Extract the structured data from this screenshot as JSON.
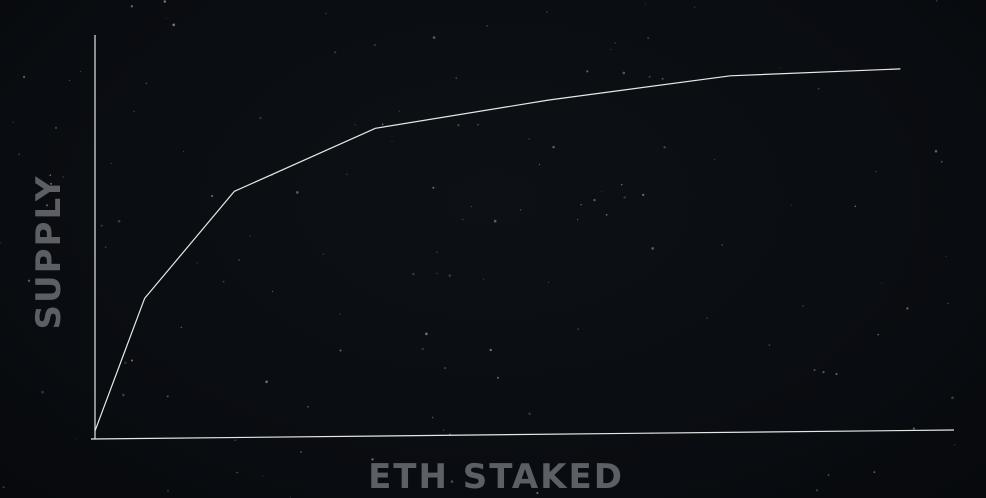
{
  "chart_data": {
    "type": "line",
    "title": "",
    "xlabel": "ETH STAKED",
    "ylabel": "SUPPLY",
    "grid": false,
    "legend": "none",
    "xlim": [
      0,
      100
    ],
    "ylim": [
      0,
      100
    ],
    "series": [
      {
        "x": [
          0,
          5.8,
          16.3,
          32.8,
          53.1,
          74.3,
          94.2
        ],
        "y": [
          2,
          34.8,
          61.3,
          76.9,
          83.9,
          89.9,
          91.6
        ]
      }
    ],
    "colors": {
      "background": "#0a0d11",
      "line": "#e8e8e8",
      "axis": "#e6e6e6",
      "label": "#5c5f64"
    }
  }
}
